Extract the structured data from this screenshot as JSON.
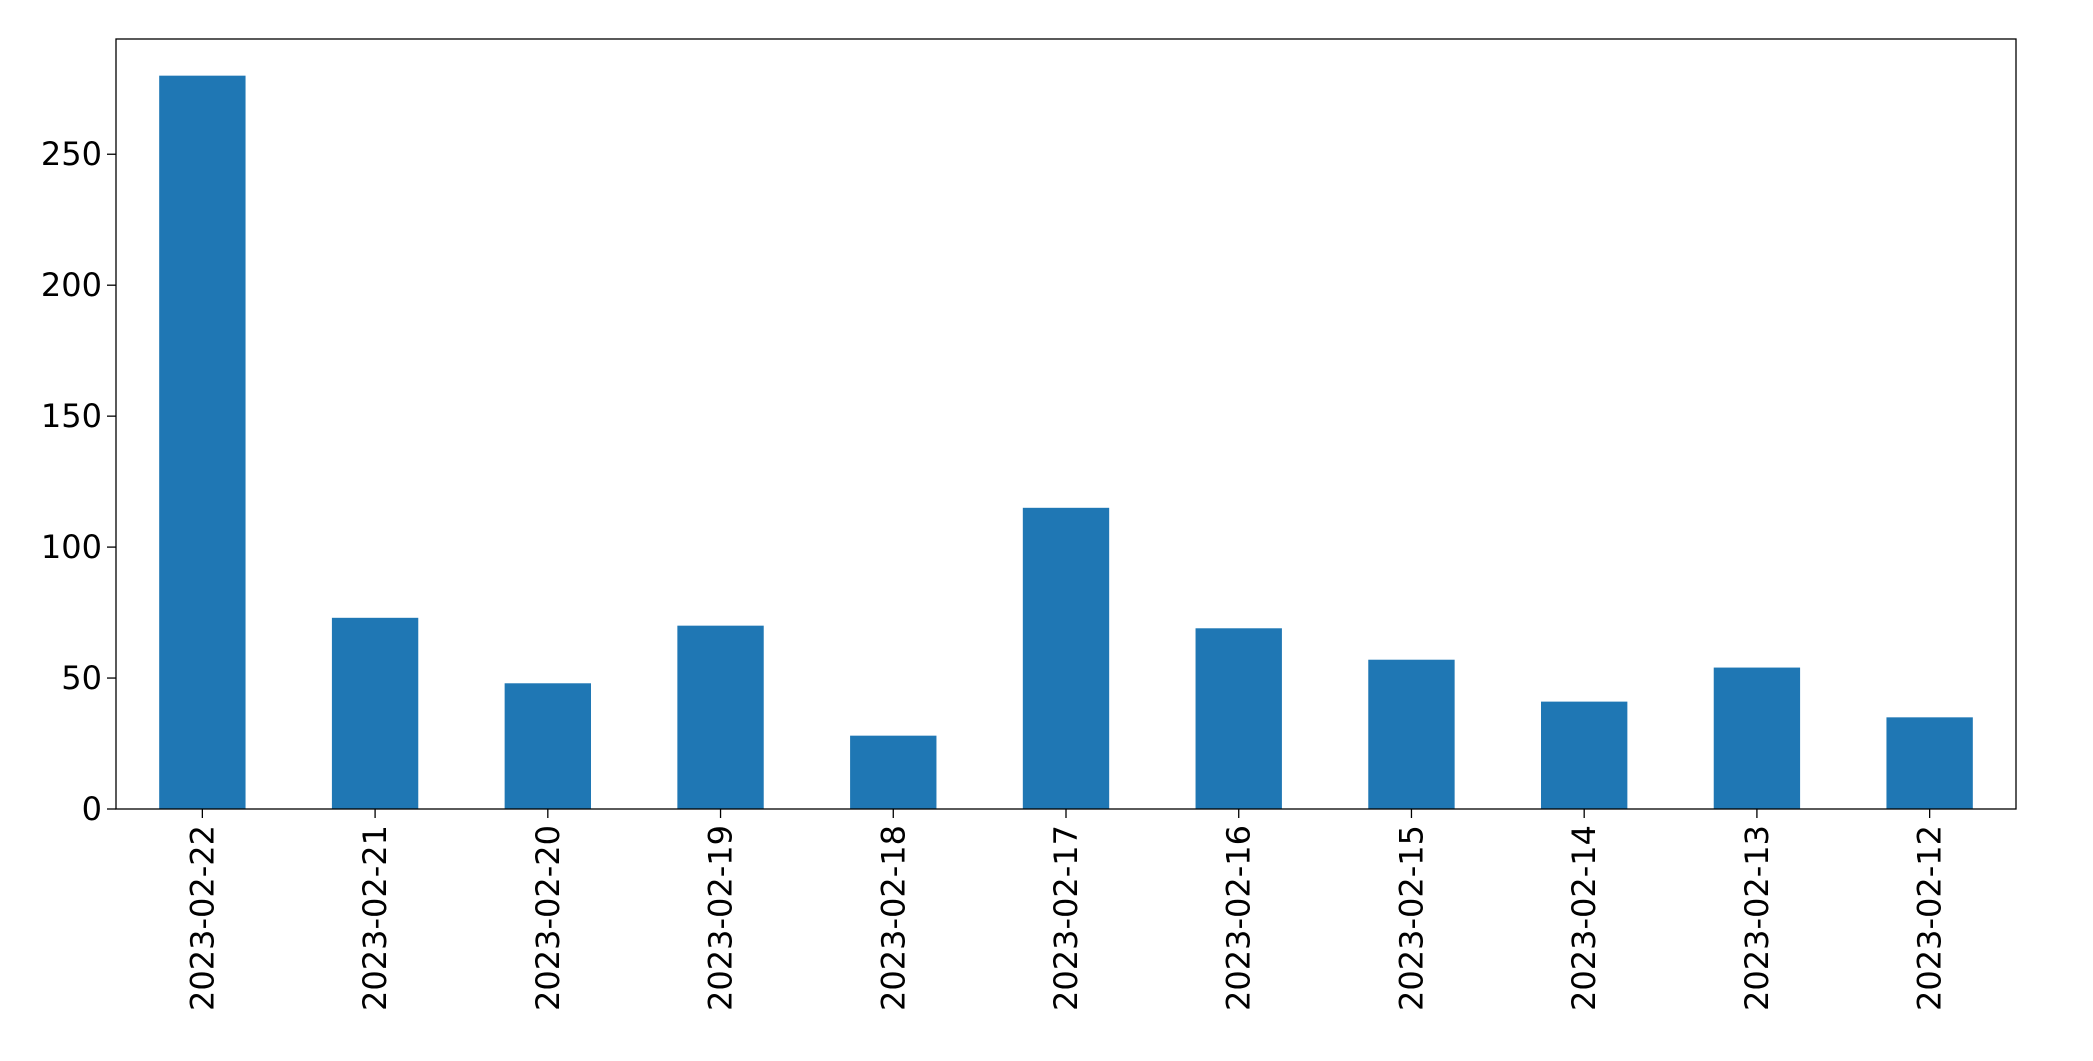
{
  "chart_data": {
    "type": "bar",
    "categories": [
      "2023-02-22",
      "2023-02-21",
      "2023-02-20",
      "2023-02-19",
      "2023-02-18",
      "2023-02-17",
      "2023-02-16",
      "2023-02-15",
      "2023-02-14",
      "2023-02-13",
      "2023-02-12"
    ],
    "values": [
      280,
      73,
      48,
      70,
      28,
      115,
      69,
      57,
      41,
      54,
      35
    ],
    "color": "#1f77b4",
    "ylim": [
      0,
      294
    ],
    "yticks": [
      0,
      50,
      100,
      150,
      200,
      250
    ],
    "grid": false
  }
}
